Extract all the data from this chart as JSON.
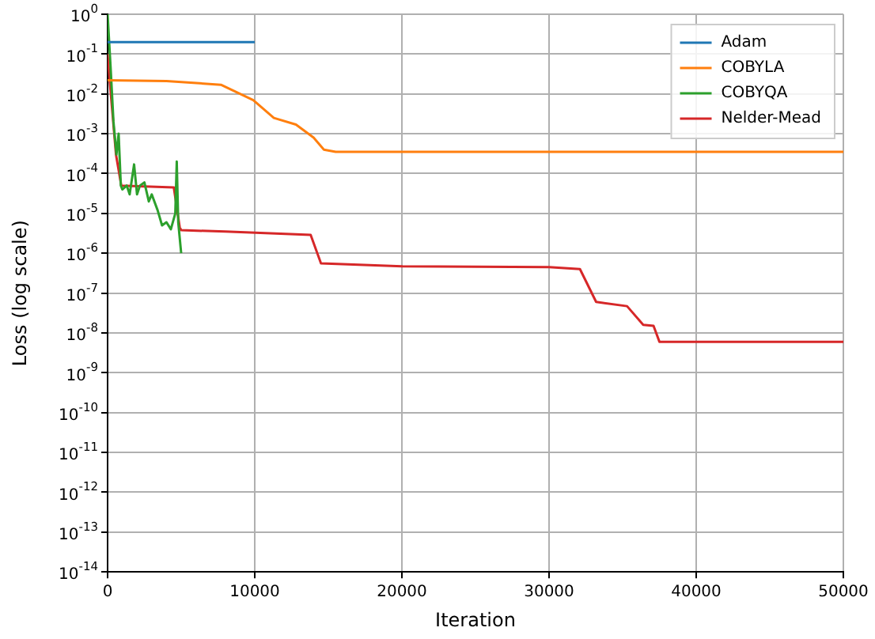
{
  "chart_data": {
    "type": "line",
    "xlabel": "Iteration",
    "ylabel": "Loss (log scale)",
    "log": "y",
    "grid": true,
    "legend": "top right",
    "marker": "none",
    "xlim": [
      0,
      50000
    ],
    "xticks": [
      0,
      10000,
      20000,
      30000,
      40000,
      50000
    ],
    "ylim": [
      1e-14,
      1
    ],
    "yticks": [
      {
        "value": 1,
        "label": "10$^{0}$"
      },
      {
        "value": 0.1,
        "label": "10$^{-1}$"
      },
      {
        "value": 0.01,
        "label": "10$^{-2}$"
      },
      {
        "value": 0.001,
        "label": "10$^{-3}$"
      },
      {
        "value": 0.0001,
        "label": "10$^{-4}$"
      },
      {
        "value": 1e-05,
        "label": "10$^{-5}$"
      },
      {
        "value": 1e-06,
        "label": "10$^{-6}$"
      },
      {
        "value": 1e-07,
        "label": "10$^{-7}$"
      },
      {
        "value": 1e-08,
        "label": "10$^{-8}$"
      },
      {
        "value": 1e-09,
        "label": "10$^{-9}$"
      },
      {
        "value": 1e-10,
        "label": "10$^{-10}$"
      },
      {
        "value": 1e-11,
        "label": "10$^{-11}$"
      },
      {
        "value": 1e-12,
        "label": "10$^{-12}$"
      },
      {
        "value": 1e-13,
        "label": "10$^{-13}$"
      },
      {
        "value": 1e-14,
        "label": "10$^{-14}$"
      }
    ],
    "series": [
      {
        "name": "Adam",
        "color": "#1f77b4",
        "x": [
          0,
          10000
        ],
        "values": [
          0.2,
          0.2
        ]
      },
      {
        "name": "COBYLA",
        "color": "#ff7f0e",
        "x": [
          0,
          4000,
          7700,
          9900,
          11300,
          12800,
          14000,
          14700,
          15500,
          50000
        ],
        "values": [
          0.022,
          0.021,
          0.017,
          0.007,
          0.0025,
          0.0017,
          0.0008,
          0.0004,
          0.00035,
          0.00035
        ]
      },
      {
        "name": "COBYQA",
        "color": "#2ca02c",
        "x": [
          0,
          200,
          400,
          600,
          750,
          900,
          1000,
          1300,
          1500,
          1800,
          2000,
          2200,
          2500,
          2800,
          3000,
          3400,
          3700,
          4000,
          4300,
          4600,
          4700,
          4800,
          5000
        ],
        "values": [
          1,
          0.05,
          0.002,
          0.0003,
          0.001,
          5e-05,
          4e-05,
          5e-05,
          3e-05,
          0.00017,
          3e-05,
          5e-05,
          6e-05,
          2e-05,
          3e-05,
          1.2e-05,
          5e-06,
          6e-06,
          4e-06,
          1e-05,
          0.0002,
          6e-06,
          1e-06
        ]
      },
      {
        "name": "Nelder-Mead",
        "color": "#d62728",
        "x": [
          0,
          150,
          570,
          930,
          4500,
          4900,
          5000,
          8000,
          13800,
          14500,
          20000,
          30000,
          32100,
          33200,
          35300,
          36400,
          37100,
          37500,
          50000
        ],
        "values": [
          0.1,
          0.02,
          0.0003,
          5e-05,
          4.5e-05,
          4.5e-06,
          3.8e-06,
          3.5e-06,
          2.9e-06,
          5.6e-07,
          4.7e-07,
          4.5e-07,
          4e-07,
          6e-08,
          4.7e-08,
          1.6e-08,
          1.5e-08,
          6e-09,
          6e-09
        ]
      }
    ]
  }
}
